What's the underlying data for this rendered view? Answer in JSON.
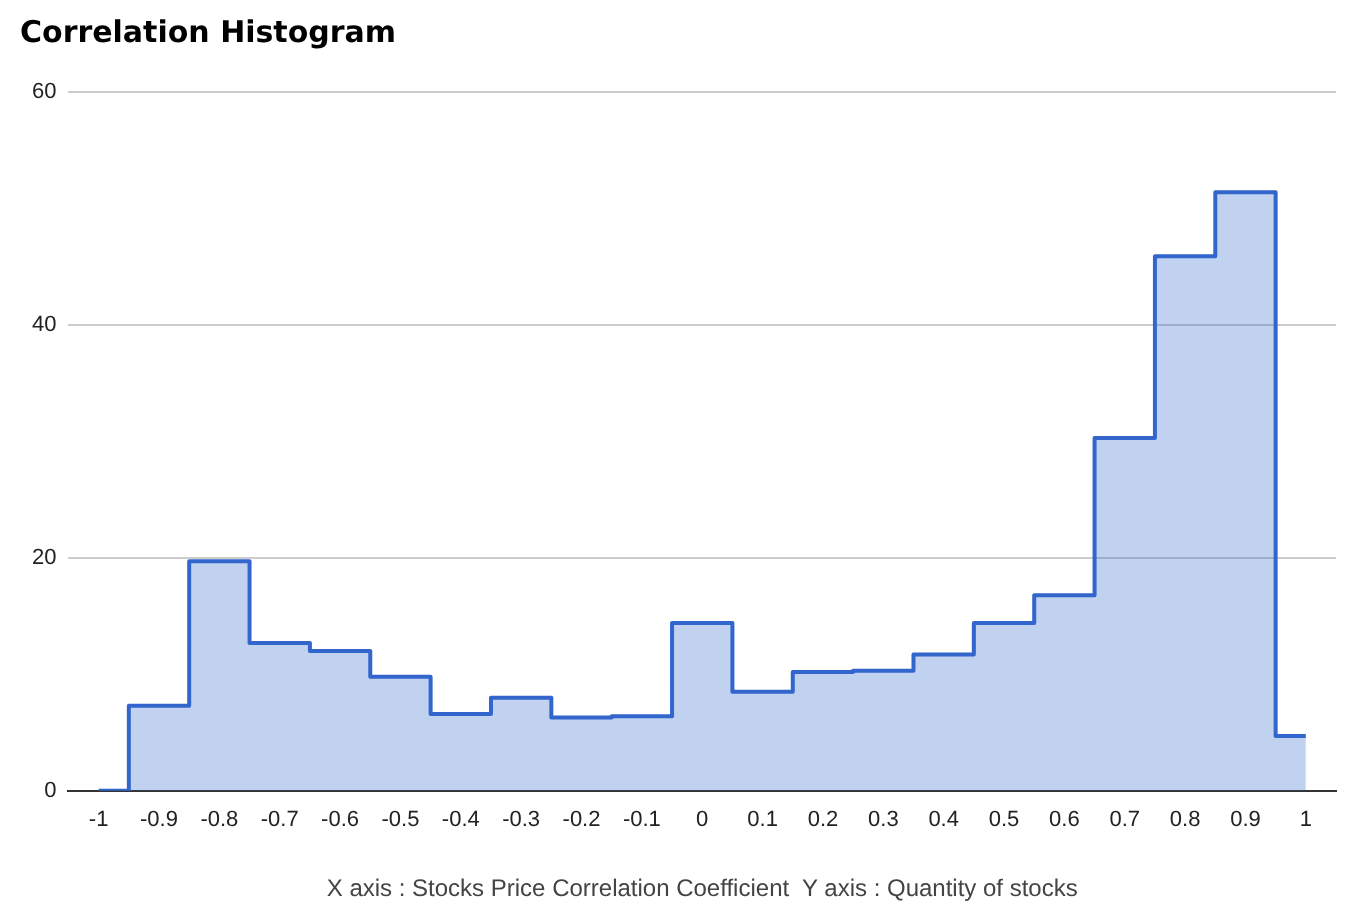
{
  "chart_data": {
    "type": "step",
    "title": "Correlation Histogram",
    "xlabel": "X axis : Stocks Price Correlation Coefficient  Y axis : Quantity of stocks",
    "categories": [
      "-1",
      "-0.9",
      "-0.8",
      "-0.7",
      "-0.6",
      "-0.5",
      "-0.4",
      "-0.3",
      "-0.2",
      "-0.1",
      "0",
      "0.1",
      "0.2",
      "0.3",
      "0.4",
      "0.5",
      "0.6",
      "0.7",
      "0.8",
      "0.9",
      "1"
    ],
    "series": [
      {
        "color": "#3366cc",
        "values": [
          0,
          7.3,
          19.7,
          12.7,
          12.0,
          9.8,
          6.6,
          8.0,
          6.3,
          6.4,
          14.4,
          8.5,
          10.2,
          10.3,
          11.7,
          14.4,
          16.8,
          30.3,
          45.9,
          51.4,
          4.7
        ]
      }
    ],
    "ylim": [
      0,
      60
    ],
    "yticks": [
      0,
      20,
      40,
      60
    ],
    "grid": "y"
  }
}
